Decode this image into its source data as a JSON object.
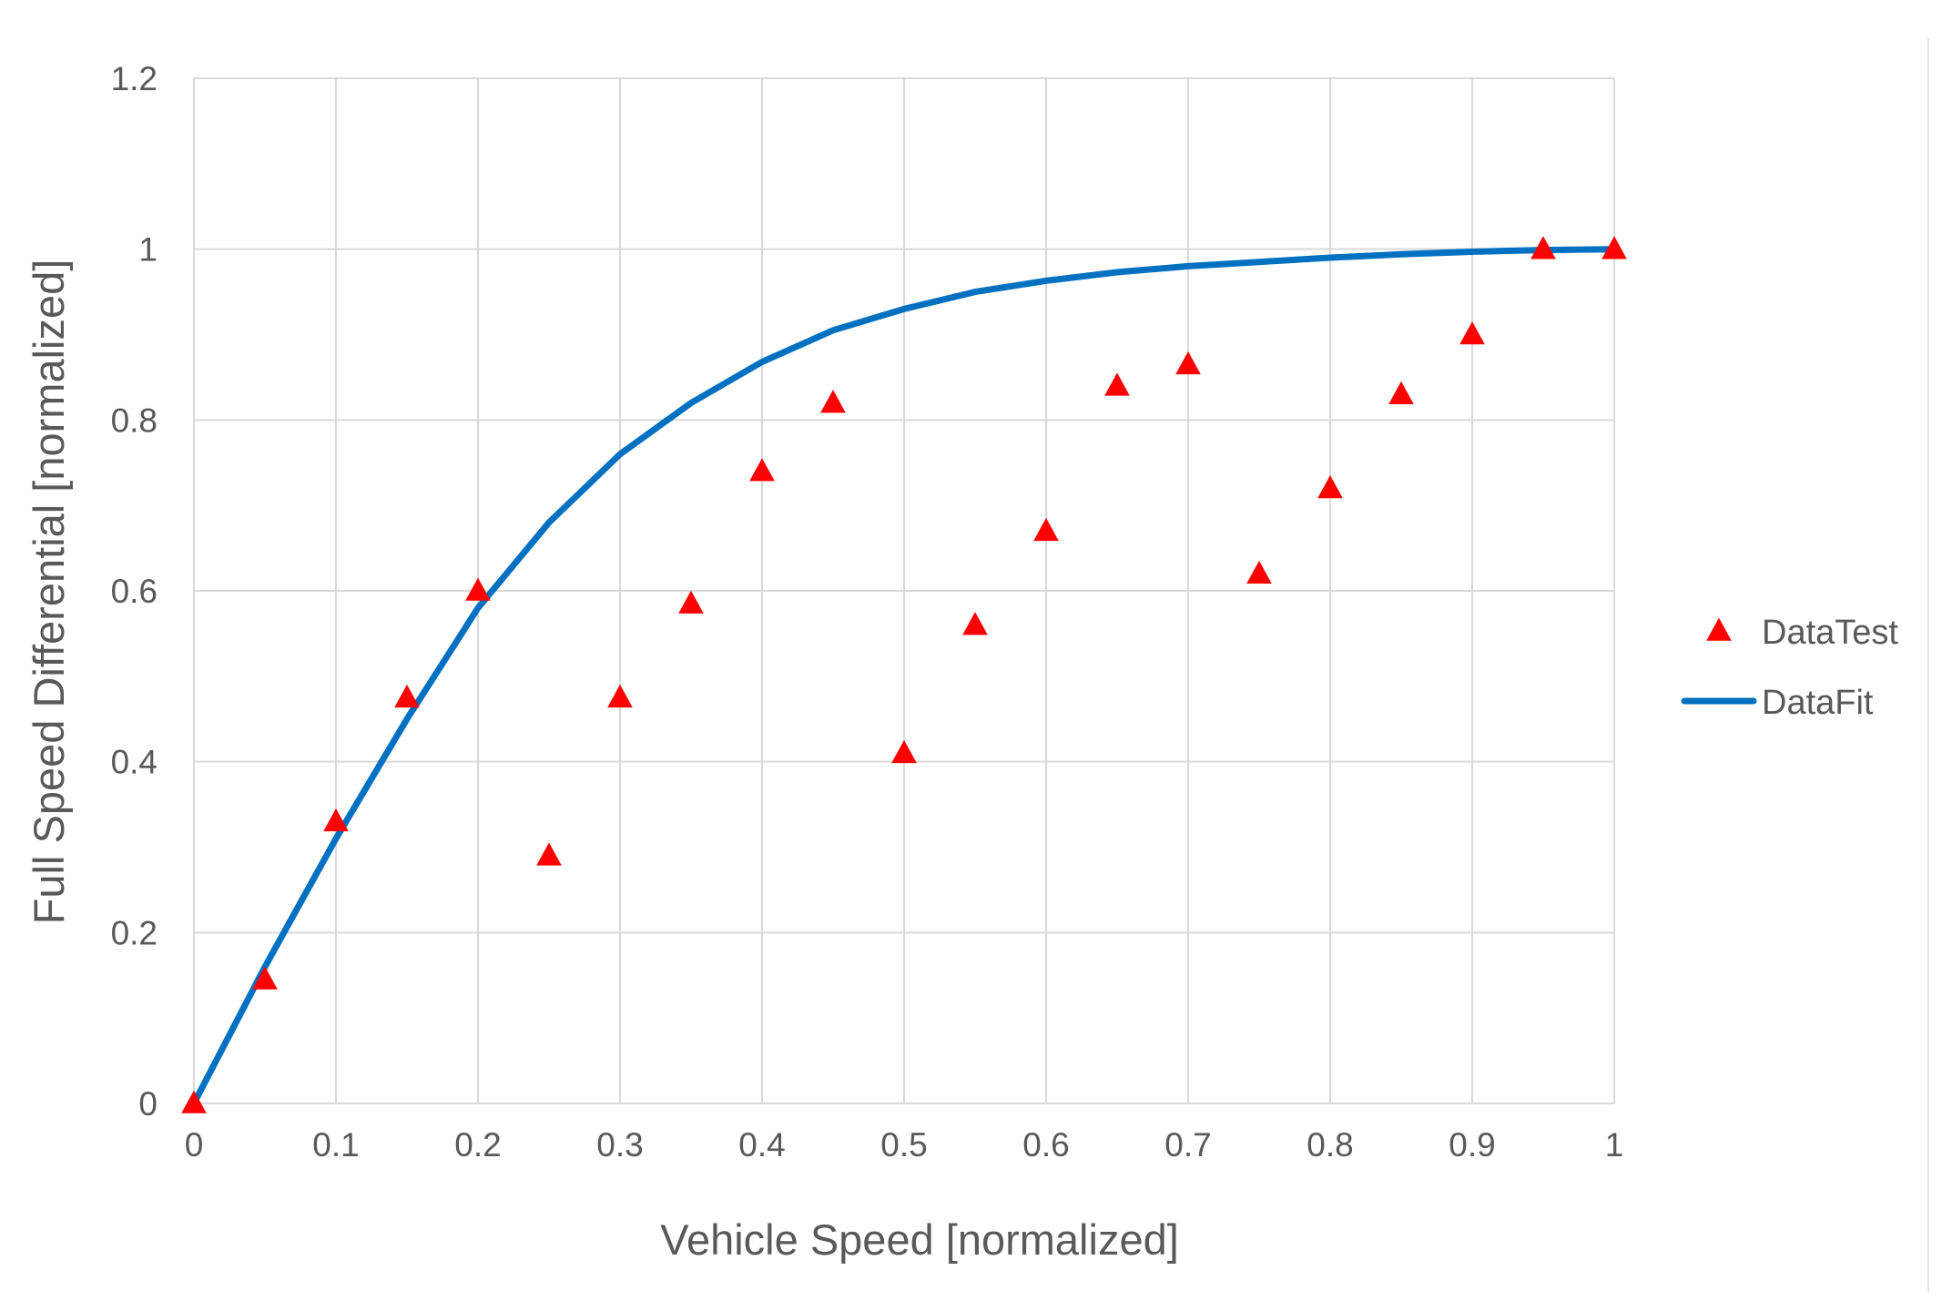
{
  "chart_data": {
    "type": "scatter",
    "title": "",
    "xlabel": "Vehicle Speed [normalized]",
    "ylabel": "Full Speed Differential [normalized]",
    "xlim": [
      0,
      1
    ],
    "ylim": [
      0,
      1.2
    ],
    "x_ticks": [
      0,
      0.1,
      0.2,
      0.3,
      0.4,
      0.5,
      0.6,
      0.7,
      0.8,
      0.9,
      1
    ],
    "x_tick_labels": [
      "0",
      "0.1",
      "0.2",
      "0.3",
      "0.4",
      "0.5",
      "0.6",
      "0.7",
      "0.8",
      "0.9",
      "1"
    ],
    "y_ticks": [
      0,
      0.2,
      0.4,
      0.6,
      0.8,
      1,
      1.2
    ],
    "y_tick_labels": [
      "0",
      "0.2",
      "0.4",
      "0.6",
      "0.8",
      "1",
      "1.2"
    ],
    "grid": true,
    "legend_position": "right",
    "series": [
      {
        "name": "DataTest",
        "kind": "scatter",
        "marker": "triangle",
        "color": "#ff0000",
        "x": [
          0,
          0.05,
          0.1,
          0.15,
          0.2,
          0.25,
          0.3,
          0.35,
          0.4,
          0.45,
          0.5,
          0.55,
          0.6,
          0.65,
          0.7,
          0.75,
          0.8,
          0.85,
          0.9,
          0.95,
          1
        ],
        "y": [
          0,
          0.145,
          0.33,
          0.475,
          0.6,
          0.29,
          0.475,
          0.585,
          0.74,
          0.82,
          0.41,
          0.56,
          0.67,
          0.84,
          0.865,
          0.62,
          0.72,
          0.83,
          0.9,
          1.0,
          1.0
        ]
      },
      {
        "name": "DataFit",
        "kind": "line",
        "color": "#0070c0",
        "x": [
          0,
          0.05,
          0.1,
          0.15,
          0.2,
          0.25,
          0.3,
          0.35,
          0.4,
          0.45,
          0.5,
          0.55,
          0.6,
          0.65,
          0.7,
          0.75,
          0.8,
          0.85,
          0.9,
          0.95,
          1
        ],
        "y": [
          0,
          0.16,
          0.31,
          0.45,
          0.58,
          0.68,
          0.76,
          0.82,
          0.868,
          0.905,
          0.93,
          0.95,
          0.963,
          0.973,
          0.98,
          0.985,
          0.99,
          0.994,
          0.997,
          0.999,
          1.0
        ]
      }
    ]
  },
  "colors": {
    "grid": "#d9d9d9",
    "axis_text": "#595959",
    "marker": "#ff0000",
    "line": "#0070c0"
  }
}
